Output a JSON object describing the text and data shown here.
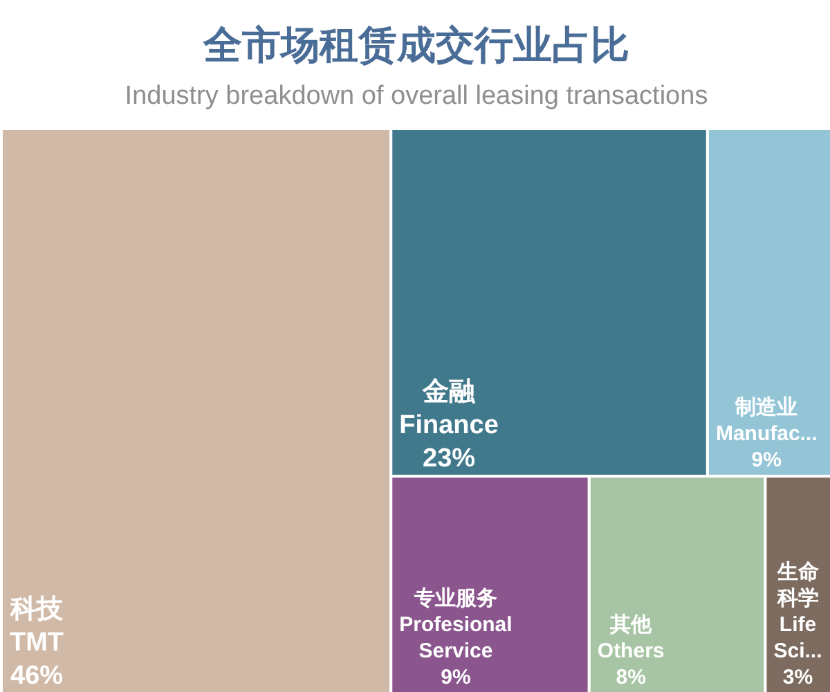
{
  "chart_data": {
    "type": "other",
    "title": "全市场租赁成交行业占比",
    "subtitle": "Industry breakdown of overall leasing transactions",
    "categories": [
      "科技\nTMT",
      "金融\nFinance",
      "制造业\nManufac...",
      "专业服务\nProfesional Service",
      "其他\nOthers",
      "生命科学\nLife Sci..."
    ],
    "values": [
      46,
      23,
      9,
      9,
      8,
      3
    ],
    "value_labels": [
      "46%",
      "23%",
      "9%",
      "9%",
      "8%",
      "3%"
    ],
    "colors": [
      "#d1b9a7",
      "#40788c",
      "#94c5d7",
      "#8b568e",
      "#a7c5a4",
      "#7d6b60"
    ]
  }
}
